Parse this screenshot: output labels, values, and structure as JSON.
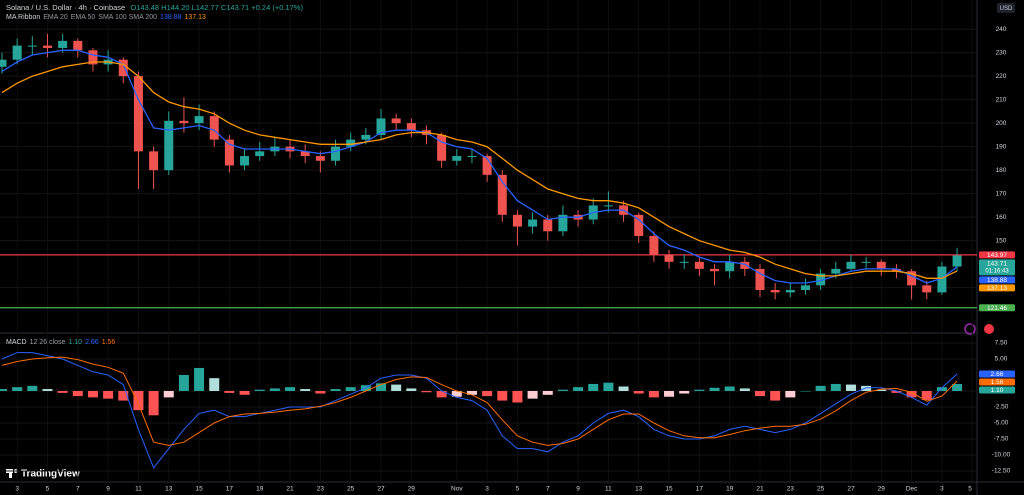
{
  "header": {
    "currency": "USD",
    "logo": "TradingView"
  },
  "chart_data": [
    {
      "type": "candlestick",
      "title": "Solana / U.S. Dollar · 4h · Coinbase",
      "ohlc_text": "O143.48 H144.20 L142.77 C143.71 +0.24 (+0.17%)",
      "indicator": "MA Ribbon",
      "indicator_other": "SMA 100 SMA 200",
      "countdown": "01:16:43",
      "up_color": "#26a69a",
      "down_color": "#ef5350",
      "categories": [
        null,
        "3",
        null,
        "5",
        null,
        "7",
        null,
        "9",
        null,
        "11",
        null,
        "13",
        null,
        "15",
        null,
        "17",
        null,
        "19",
        null,
        "21",
        null,
        "23",
        null,
        "25",
        null,
        "27",
        null,
        "29",
        null,
        null,
        "Nov",
        null,
        "3",
        null,
        "5",
        null,
        "7",
        null,
        "9",
        null,
        "11",
        null,
        "13",
        null,
        "15",
        null,
        "17",
        null,
        "19",
        null,
        "21",
        null,
        "23",
        null,
        "25",
        null,
        "27",
        null,
        "29",
        null,
        "Dec",
        null,
        "3",
        null,
        "5"
      ],
      "open": [
        224,
        227,
        233,
        233,
        232,
        235,
        231,
        225,
        227,
        220,
        188,
        180,
        201,
        200,
        203,
        193,
        182,
        186,
        188,
        190,
        188,
        186,
        184,
        190,
        193,
        195,
        202,
        200,
        197,
        195,
        184,
        186,
        186,
        178,
        161,
        156,
        159,
        154,
        161,
        159,
        165,
        165,
        161,
        152,
        144,
        141,
        141,
        138,
        137,
        141,
        138,
        129,
        128,
        129,
        131,
        136,
        138,
        141,
        141,
        138,
        137,
        131,
        128,
        139,
        null
      ],
      "high": [
        230,
        236,
        237,
        238,
        238,
        236,
        232,
        231,
        228,
        222,
        190,
        205,
        211,
        208,
        205,
        195,
        189,
        192,
        194,
        193,
        191,
        188,
        193,
        196,
        198,
        206,
        204,
        202,
        199,
        196,
        189,
        189,
        187,
        180,
        163,
        162,
        161,
        165,
        163,
        168,
        171,
        167,
        162,
        154,
        146,
        144,
        143,
        140,
        144,
        143,
        140,
        132,
        132,
        134,
        138,
        141,
        144,
        143,
        142,
        140,
        138,
        133,
        141,
        147,
        null
      ],
      "low": [
        221,
        225,
        229,
        228,
        230,
        228,
        222,
        222,
        217,
        172,
        172,
        178,
        196,
        197,
        190,
        179,
        180,
        184,
        186,
        185,
        183,
        179,
        182,
        188,
        191,
        193,
        197,
        194,
        191,
        181,
        182,
        183,
        175,
        158,
        148,
        153,
        150,
        152,
        156,
        157,
        162,
        158,
        149,
        141,
        138,
        138,
        135,
        131,
        134,
        135,
        126,
        125,
        126,
        127,
        129,
        134,
        137,
        138,
        135,
        134,
        125,
        125,
        127,
        137,
        null
      ],
      "close": [
        227,
        233,
        233,
        232,
        235,
        231,
        225,
        227,
        220,
        188,
        180,
        201,
        200,
        203,
        193,
        182,
        186,
        188,
        190,
        188,
        186,
        184,
        190,
        193,
        195,
        202,
        200,
        197,
        195,
        184,
        186,
        186,
        178,
        161,
        156,
        159,
        154,
        161,
        159,
        165,
        165,
        161,
        152,
        144,
        141,
        141,
        138,
        137,
        141,
        138,
        129,
        128,
        129,
        131,
        136,
        138,
        141,
        141,
        138,
        137,
        131,
        128,
        139,
        143.71,
        null
      ],
      "series": [
        {
          "name": "EMA 20",
          "color": "#2962ff",
          "values": [
            222,
            226,
            229,
            230,
            231,
            231,
            229,
            228,
            225,
            210,
            198,
            197,
            198,
            199,
            197,
            191,
            189,
            189,
            189,
            189,
            188,
            187,
            188,
            190,
            192,
            196,
            197,
            197,
            196,
            192,
            190,
            189,
            185,
            175,
            167,
            163,
            159,
            160,
            160,
            162,
            163,
            163,
            159,
            153,
            148,
            146,
            143,
            141,
            141,
            140,
            136,
            133,
            132,
            132,
            133,
            135,
            137,
            138,
            138,
            138,
            135,
            132,
            134,
            138.88,
            null
          ]
        },
        {
          "name": "EMA 50",
          "color": "#ff9800",
          "values": [
            213,
            217,
            220,
            222,
            224,
            225,
            226,
            226,
            225,
            220,
            213,
            209,
            207,
            206,
            204,
            200,
            197,
            195,
            194,
            193,
            192,
            191,
            191,
            191,
            192,
            193,
            195,
            196,
            196,
            195,
            193,
            192,
            190,
            185,
            180,
            176,
            172,
            170,
            168,
            167,
            167,
            166,
            164,
            160,
            156,
            153,
            150,
            148,
            146,
            145,
            143,
            140,
            138,
            136,
            135,
            135,
            136,
            137,
            137,
            137,
            136,
            134,
            134,
            137.13,
            null
          ]
        }
      ],
      "hlines": [
        {
          "value": 143.97,
          "color": "#f23645"
        },
        {
          "value": 121.46,
          "color": "#4caf50"
        }
      ],
      "ylim": [
        115.4,
        252.4
      ],
      "yticks": [
        130,
        150,
        160,
        170,
        180,
        190,
        200,
        210,
        220,
        230,
        240
      ],
      "grid": true
    },
    {
      "type": "macd",
      "title": "MACD",
      "params": "12 26 close",
      "histogram": {
        "colors": [
          "#26a69a",
          "#b2dfdb",
          "#ffcdd2",
          "#ff5252"
        ],
        "values": [
          0.3,
          0.6,
          0.8,
          0.3,
          -0.3,
          -0.8,
          -1,
          -1.2,
          -1.5,
          -3,
          -3.8,
          -1,
          2.5,
          3.6,
          2,
          -0.3,
          -0.6,
          0.2,
          0.4,
          0.6,
          0.3,
          -0.4,
          0.3,
          0.6,
          0.9,
          1.2,
          1,
          0.4,
          -0.2,
          -1,
          -0.9,
          -0.6,
          -0.8,
          -1.5,
          -1.8,
          -1.2,
          -0.6,
          0.2,
          0.6,
          1.1,
          1.3,
          0.7,
          -0.4,
          -1,
          -0.9,
          -0.4,
          0.2,
          0.5,
          0.7,
          0.4,
          -0.8,
          -1.5,
          -1,
          0,
          0.8,
          1.1,
          1,
          0.8,
          0.2,
          -0.3,
          -1,
          -1.4,
          0.6,
          1.1,
          null
        ],
        "last": {
          "value": 1.1,
          "label": "1.10"
        }
      },
      "series": [
        {
          "name": "MACD",
          "color": "#2962ff",
          "values": [
            5,
            6,
            6,
            5.5,
            5,
            4,
            3,
            2.5,
            1,
            -6,
            -12,
            -9,
            -6,
            -3.5,
            -3,
            -4,
            -4,
            -3.5,
            -3,
            -2.5,
            -2.5,
            -2.5,
            -1.5,
            -0.5,
            0.5,
            2,
            2.5,
            2.5,
            2,
            0,
            -1,
            -1.5,
            -3,
            -7,
            -9,
            -9,
            -9.5,
            -8,
            -7,
            -5,
            -3.5,
            -3,
            -4,
            -6,
            -7,
            -7.5,
            -7.5,
            -7,
            -6,
            -5.5,
            -6,
            -6.5,
            -6,
            -5,
            -3.5,
            -2,
            -0.5,
            0.5,
            0.5,
            0,
            -1,
            -2.2,
            0.5,
            2.66,
            null
          ],
          "last": {
            "value": 2.66,
            "label": "2.66"
          }
        },
        {
          "name": "Signal",
          "color": "#ff6d00",
          "values": [
            4,
            4.6,
            5,
            5.2,
            5.3,
            4.9,
            4.2,
            3.7,
            2.8,
            -2,
            -8,
            -8.5,
            -8,
            -6.5,
            -5,
            -4,
            -3.6,
            -3.5,
            -3.3,
            -3,
            -2.8,
            -2.4,
            -1.8,
            -1,
            0,
            1,
            1.8,
            2.2,
            2.1,
            1,
            0,
            -0.6,
            -1.8,
            -4.5,
            -7,
            -8,
            -8.5,
            -8.2,
            -7.5,
            -6,
            -4.5,
            -3.6,
            -3.6,
            -5,
            -6.2,
            -7,
            -7.3,
            -7.3,
            -6.8,
            -6.2,
            -5.8,
            -5.5,
            -5.5,
            -5.2,
            -4.4,
            -3.1,
            -1.5,
            -0.2,
            0.3,
            0.4,
            -0.2,
            -1.6,
            -0.8,
            1.56,
            null
          ],
          "last": {
            "value": 1.56,
            "label": "1.56"
          }
        }
      ],
      "ylim": [
        -14.22,
        8.59
      ],
      "yticks": [
        {
          "value": 7.5,
          "label": "7.50"
        },
        {
          "value": 5,
          "label": "5.00"
        },
        {
          "value": 0,
          "label": "0.00"
        },
        {
          "value": -2.5,
          "label": "-2.50"
        },
        {
          "value": -5,
          "label": "-5.00"
        },
        {
          "value": -7.5,
          "label": "-7.50"
        },
        {
          "value": -10,
          "label": "-10.00"
        },
        {
          "value": -12.5,
          "label": "-12.50"
        }
      ],
      "grid": true
    }
  ]
}
